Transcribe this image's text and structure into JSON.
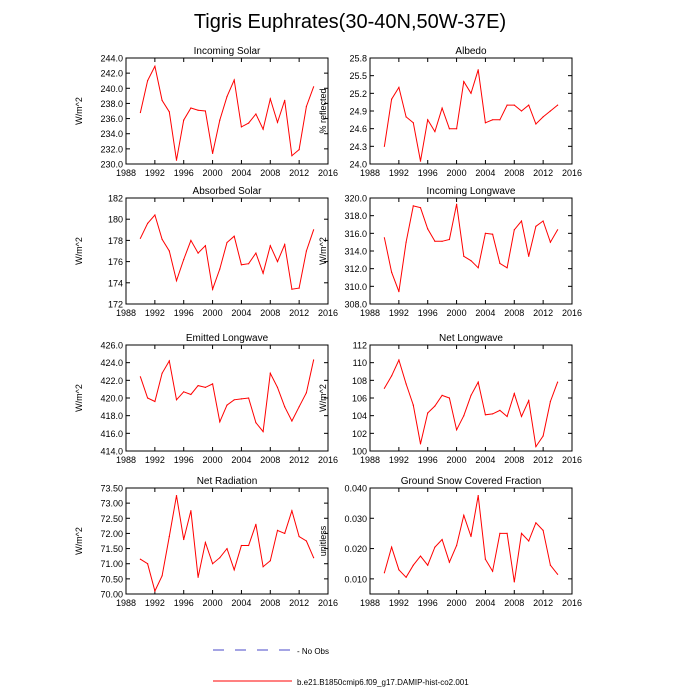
{
  "figure": {
    "title": "Tigris Euphrates(30-40N,50W-37E)",
    "colors": {
      "series": "#ff0000",
      "obs": "#4a4ac8",
      "axis": "#000000"
    }
  },
  "legend": {
    "items": [
      {
        "label": "- No Obs",
        "style": "dashed",
        "color": "#4a4ac8"
      },
      {
        "label": "b.e21.B1850cmip6.f09_g17.DAMIP-hist-co2.001",
        "style": "solid",
        "color": "#ff0000"
      }
    ]
  },
  "chart_data": [
    {
      "type": "line",
      "title": "Incoming Solar",
      "xlabel": "",
      "ylabel": "W/m^2",
      "xlim": [
        1988,
        2016
      ],
      "ylim": [
        230,
        244
      ],
      "xticks": [
        1988,
        1992,
        1996,
        2000,
        2004,
        2008,
        2012,
        2016
      ],
      "yticks": [
        230,
        232,
        234,
        236,
        238,
        240,
        242,
        244
      ],
      "ytick_labels": [
        "230.0",
        "232.0",
        "234.0",
        "236.0",
        "238.0",
        "240.0",
        "242.0",
        "244.0"
      ],
      "x": [
        1990,
        1991,
        1992,
        1993,
        1994,
        1995,
        1996,
        1997,
        1998,
        1999,
        2000,
        2001,
        2002,
        2003,
        2004,
        2005,
        2006,
        2007,
        2008,
        2009,
        2010,
        2011,
        2012,
        2013,
        2014
      ],
      "series": [
        {
          "values": [
            236.8,
            241.0,
            242.9,
            238.4,
            236.9,
            230.5,
            235.8,
            237.4,
            237.1,
            237.0,
            231.4,
            235.8,
            238.9,
            241.1,
            234.9,
            235.4,
            236.6,
            234.6,
            238.6,
            235.5,
            238.4,
            231.1,
            231.9,
            237.6,
            240.2
          ]
        }
      ]
    },
    {
      "type": "line",
      "title": "Albedo",
      "xlabel": "",
      "ylabel": "% reflected",
      "xlim": [
        1988,
        2016
      ],
      "ylim": [
        24.0,
        25.8
      ],
      "xticks": [
        1988,
        1992,
        1996,
        2000,
        2004,
        2008,
        2012,
        2016
      ],
      "yticks": [
        24.0,
        24.3,
        24.6,
        24.9,
        25.2,
        25.5,
        25.8
      ],
      "ytick_labels": [
        "24.0",
        "24.3",
        "24.6",
        "24.9",
        "25.2",
        "25.5",
        "25.8"
      ],
      "x": [
        1990,
        1991,
        1992,
        1993,
        1994,
        1995,
        1996,
        1997,
        1998,
        1999,
        2000,
        2001,
        2002,
        2003,
        2004,
        2005,
        2006,
        2007,
        2008,
        2009,
        2010,
        2011,
        2012,
        2013,
        2014
      ],
      "series": [
        {
          "values": [
            24.3,
            25.1,
            25.3,
            24.8,
            24.7,
            24.05,
            24.75,
            24.55,
            24.95,
            24.6,
            24.6,
            25.4,
            25.2,
            25.6,
            24.7,
            24.75,
            24.75,
            25.0,
            25.0,
            24.9,
            25.0,
            24.68,
            24.8,
            24.9,
            25.0
          ]
        }
      ]
    },
    {
      "type": "line",
      "title": "Absorbed Solar",
      "xlabel": "",
      "ylabel": "W/m^2",
      "xlim": [
        1988,
        2016
      ],
      "ylim": [
        172,
        182
      ],
      "xticks": [
        1988,
        1992,
        1996,
        2000,
        2004,
        2008,
        2012,
        2016
      ],
      "yticks": [
        172,
        174,
        176,
        178,
        180,
        182
      ],
      "ytick_labels": [
        "172",
        "174",
        "176",
        "178",
        "180",
        "182"
      ],
      "x": [
        1990,
        1991,
        1992,
        1993,
        1994,
        1995,
        1996,
        1997,
        1998,
        1999,
        2000,
        2001,
        2002,
        2003,
        2004,
        2005,
        2006,
        2007,
        2008,
        2009,
        2010,
        2011,
        2012,
        2013,
        2014
      ],
      "series": [
        {
          "values": [
            178.2,
            179.6,
            180.4,
            178.1,
            177.0,
            174.2,
            176.2,
            178.0,
            176.8,
            177.5,
            173.4,
            175.3,
            177.8,
            178.4,
            175.7,
            175.8,
            176.8,
            174.9,
            177.5,
            176.0,
            177.6,
            173.4,
            173.5,
            177.0,
            179.0
          ]
        }
      ]
    },
    {
      "type": "line",
      "title": "Incoming Longwave",
      "xlabel": "",
      "ylabel": "W/m^2",
      "xlim": [
        1988,
        2016
      ],
      "ylim": [
        308,
        320
      ],
      "xticks": [
        1988,
        1992,
        1996,
        2000,
        2004,
        2008,
        2012,
        2016
      ],
      "yticks": [
        308,
        310,
        312,
        314,
        316,
        318,
        320
      ],
      "ytick_labels": [
        "308.0",
        "310.0",
        "312.0",
        "314.0",
        "316.0",
        "318.0",
        "320.0"
      ],
      "x": [
        1990,
        1991,
        1992,
        1993,
        1994,
        1995,
        1996,
        1997,
        1998,
        1999,
        2000,
        2001,
        2002,
        2003,
        2004,
        2005,
        2006,
        2007,
        2008,
        2009,
        2010,
        2011,
        2012,
        2013,
        2014
      ],
      "series": [
        {
          "values": [
            315.5,
            311.6,
            309.4,
            315.0,
            319.1,
            318.9,
            316.5,
            315.1,
            315.1,
            315.3,
            319.3,
            313.4,
            312.9,
            312.1,
            316.0,
            315.9,
            312.6,
            312.1,
            316.4,
            317.4,
            313.4,
            316.8,
            317.4,
            315.0,
            316.4
          ]
        }
      ]
    },
    {
      "type": "line",
      "title": "Emitted Longwave",
      "xlabel": "",
      "ylabel": "W/m^2",
      "xlim": [
        1988,
        2016
      ],
      "ylim": [
        414,
        426
      ],
      "xticks": [
        1988,
        1992,
        1996,
        2000,
        2004,
        2008,
        2012,
        2016
      ],
      "yticks": [
        414,
        416,
        418,
        420,
        422,
        424,
        426
      ],
      "ytick_labels": [
        "414.0",
        "416.0",
        "418.0",
        "420.0",
        "422.0",
        "424.0",
        "426.0"
      ],
      "x": [
        1990,
        1991,
        1992,
        1993,
        1994,
        1995,
        1996,
        1997,
        1998,
        1999,
        2000,
        2001,
        2002,
        2003,
        2004,
        2005,
        2006,
        2007,
        2008,
        2009,
        2010,
        2011,
        2012,
        2013,
        2014
      ],
      "series": [
        {
          "values": [
            422.4,
            420.0,
            419.6,
            422.8,
            424.2,
            419.8,
            420.7,
            420.4,
            421.4,
            421.2,
            421.6,
            417.3,
            419.2,
            419.8,
            419.9,
            420.0,
            417.2,
            416.2,
            422.8,
            421.2,
            419.0,
            417.4,
            419.0,
            420.6,
            424.3
          ]
        }
      ]
    },
    {
      "type": "line",
      "title": "Net Longwave",
      "xlabel": "",
      "ylabel": "W/m^2",
      "xlim": [
        1988,
        2016
      ],
      "ylim": [
        100,
        112
      ],
      "xticks": [
        1988,
        1992,
        1996,
        2000,
        2004,
        2008,
        2012,
        2016
      ],
      "yticks": [
        100,
        102,
        104,
        106,
        108,
        110,
        112
      ],
      "ytick_labels": [
        "100",
        "102",
        "104",
        "106",
        "108",
        "110",
        "112"
      ],
      "x": [
        1990,
        1991,
        1992,
        1993,
        1994,
        1995,
        1996,
        1997,
        1998,
        1999,
        2000,
        2001,
        2002,
        2003,
        2004,
        2005,
        2006,
        2007,
        2008,
        2009,
        2010,
        2011,
        2012,
        2013,
        2014
      ],
      "series": [
        {
          "values": [
            107.1,
            108.5,
            110.3,
            107.6,
            105.2,
            100.8,
            104.3,
            105.1,
            106.3,
            106.0,
            102.4,
            104.0,
            106.3,
            107.8,
            104.1,
            104.2,
            104.6,
            103.9,
            106.5,
            103.9,
            105.7,
            100.5,
            101.7,
            105.6,
            107.8
          ]
        }
      ]
    },
    {
      "type": "line",
      "title": "Net Radiation",
      "xlabel": "",
      "ylabel": "W/m^2",
      "xlim": [
        1988,
        2016
      ],
      "ylim": [
        70.0,
        73.5
      ],
      "xticks": [
        1988,
        1992,
        1996,
        2000,
        2004,
        2008,
        2012,
        2016
      ],
      "yticks": [
        70.0,
        70.5,
        71.0,
        71.5,
        72.0,
        72.5,
        73.0,
        73.5
      ],
      "ytick_labels": [
        "70.00",
        "70.50",
        "71.00",
        "71.50",
        "72.00",
        "72.50",
        "73.00",
        "73.50"
      ],
      "x": [
        1990,
        1991,
        1992,
        1993,
        1994,
        1995,
        1996,
        1997,
        1998,
        1999,
        2000,
        2001,
        2002,
        2003,
        2004,
        2005,
        2006,
        2007,
        2008,
        2009,
        2010,
        2011,
        2012,
        2013,
        2014
      ],
      "series": [
        {
          "values": [
            71.15,
            71.0,
            70.1,
            70.6,
            71.9,
            73.25,
            71.8,
            72.75,
            70.55,
            71.7,
            71.0,
            71.2,
            71.5,
            70.8,
            71.6,
            71.6,
            72.3,
            70.9,
            71.1,
            72.1,
            72.0,
            72.75,
            71.9,
            71.75,
            71.2
          ]
        }
      ]
    },
    {
      "type": "line",
      "title": "Ground Snow Covered Fraction",
      "xlabel": "",
      "ylabel": "unitless",
      "xlim": [
        1988,
        2016
      ],
      "ylim": [
        0.005,
        0.04
      ],
      "xticks": [
        1988,
        1992,
        1996,
        2000,
        2004,
        2008,
        2012,
        2016
      ],
      "yticks": [
        0.01,
        0.02,
        0.03,
        0.04
      ],
      "ytick_labels": [
        "0.010",
        "0.020",
        "0.030",
        "0.040"
      ],
      "x": [
        1990,
        1991,
        1992,
        1993,
        1994,
        1995,
        1996,
        1997,
        1998,
        1999,
        2000,
        2001,
        2002,
        2003,
        2004,
        2005,
        2006,
        2007,
        2008,
        2009,
        2010,
        2011,
        2012,
        2013,
        2014
      ],
      "series": [
        {
          "values": [
            0.012,
            0.0205,
            0.013,
            0.0105,
            0.0145,
            0.0175,
            0.0145,
            0.0205,
            0.023,
            0.0155,
            0.021,
            0.031,
            0.024,
            0.0375,
            0.0165,
            0.0125,
            0.025,
            0.025,
            0.009,
            0.025,
            0.0225,
            0.0285,
            0.026,
            0.0145,
            0.0115
          ]
        }
      ]
    }
  ]
}
